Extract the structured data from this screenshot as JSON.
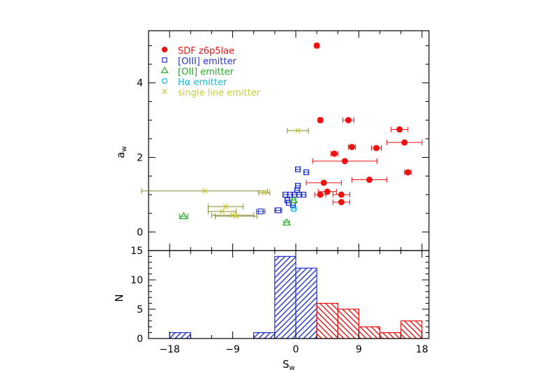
{
  "chart_data": [
    {
      "type": "scatter",
      "title": "",
      "xlabel": "S",
      "xlabel_sub": "w",
      "ylabel": "a",
      "ylabel_sub": "w",
      "xlim": [
        -21,
        19
      ],
      "ylim": [
        -0.5,
        5.4
      ],
      "yticks": [
        0,
        2,
        4
      ],
      "ytick_labels": [
        "0",
        "2",
        "4"
      ],
      "grid": false,
      "legend_position": "top-left",
      "series": [
        {
          "name": "SDF z6p5lae",
          "color": "#ee1111",
          "marker": "filled-circle",
          "points": [
            {
              "x": 3.0,
              "y": 5.0,
              "xerr": 0.3
            },
            {
              "x": 3.5,
              "y": 3.0,
              "xerr": 0.3
            },
            {
              "x": 7.5,
              "y": 3.0,
              "xerr": 0.8
            },
            {
              "x": 14.8,
              "y": 2.75,
              "xerr": 1.2
            },
            {
              "x": 15.5,
              "y": 2.4,
              "xerr": 2.5
            },
            {
              "x": 8.0,
              "y": 2.28,
              "xerr": 0.5
            },
            {
              "x": 11.5,
              "y": 2.25,
              "xerr": 0.7
            },
            {
              "x": 5.5,
              "y": 2.1,
              "xerr": 0.5
            },
            {
              "x": 7.0,
              "y": 1.9,
              "xerr": 4.6
            },
            {
              "x": 16.0,
              "y": 1.6,
              "xerr": 0.5
            },
            {
              "x": 10.5,
              "y": 1.4,
              "xerr": 2.5
            },
            {
              "x": 4.0,
              "y": 1.32,
              "xerr": 2.5
            },
            {
              "x": 4.5,
              "y": 1.08,
              "xerr": 1.3
            },
            {
              "x": 3.5,
              "y": 1.0,
              "xerr": 0.8
            },
            {
              "x": 6.5,
              "y": 1.0,
              "xerr": 1.2
            },
            {
              "x": 6.5,
              "y": 0.8,
              "xerr": 1.2
            }
          ]
        },
        {
          "name": "[OIII] emitter",
          "color": "#2233cc",
          "marker": "open-square",
          "points": [
            {
              "x": 0.3,
              "y": 1.68,
              "xerr": 0.3
            },
            {
              "x": 1.5,
              "y": 1.6,
              "xerr": 0.3
            },
            {
              "x": 0.3,
              "y": 1.24,
              "xerr": 0.3
            },
            {
              "x": 0.2,
              "y": 1.12,
              "xerr": 0.3
            },
            {
              "x": -1.5,
              "y": 1.0,
              "xerr": 0.3
            },
            {
              "x": -0.8,
              "y": 1.0,
              "xerr": 0.3
            },
            {
              "x": -0.2,
              "y": 1.0,
              "xerr": 0.3
            },
            {
              "x": 0.5,
              "y": 1.0,
              "xerr": 0.3
            },
            {
              "x": 1.1,
              "y": 1.0,
              "xerr": 0.3
            },
            {
              "x": -1.2,
              "y": 0.85,
              "xerr": 0.3
            },
            {
              "x": -1.0,
              "y": 0.78,
              "xerr": 0.3
            },
            {
              "x": -0.4,
              "y": 0.72,
              "xerr": 0.3
            },
            {
              "x": -2.5,
              "y": 0.58,
              "xerr": 0.5
            },
            {
              "x": -5.0,
              "y": 0.55,
              "xerr": 0.6
            }
          ]
        },
        {
          "name": "[OII] emitter",
          "color": "#22aa22",
          "marker": "open-triangle",
          "points": [
            {
              "x": -16.0,
              "y": 0.42,
              "xerr": 0.6
            },
            {
              "x": -1.3,
              "y": 0.25,
              "xerr": 0.4
            },
            {
              "x": -0.3,
              "y": 0.85,
              "xerr": 0.3
            }
          ]
        },
        {
          "name": "Hα emitter",
          "color": "#11bbdd",
          "marker": "open-hexagon",
          "points": [
            {
              "x": -0.3,
              "y": 0.62,
              "xerr": 0.3
            }
          ]
        },
        {
          "name": "single line emitter",
          "color": "#cccc33",
          "marker": "cross",
          "errcolor": "#888833",
          "points": [
            {
              "x": 0.3,
              "y": 2.72,
              "xerr": 1.5
            },
            {
              "x": -13.0,
              "y": 1.1,
              "xerr": 9.0
            },
            {
              "x": -4.5,
              "y": 1.05,
              "xerr": 0.8
            },
            {
              "x": -10.0,
              "y": 0.68,
              "xerr": 2.5
            },
            {
              "x": -10.5,
              "y": 0.55,
              "xerr": 2.0
            },
            {
              "x": -9.0,
              "y": 0.45,
              "xerr": 3.0
            },
            {
              "x": -8.5,
              "y": 0.42,
              "xerr": 3.0
            }
          ]
        }
      ]
    },
    {
      "type": "bar",
      "subtype": "histogram",
      "title": "",
      "xlabel": "S",
      "xlabel_sub": "w",
      "ylabel": "N",
      "xlim": [
        -21,
        19
      ],
      "ylim": [
        0,
        15
      ],
      "xticks": [
        -18,
        -9,
        0,
        9,
        18
      ],
      "xtick_labels": [
        "−18",
        "−9",
        "0",
        "9",
        "18"
      ],
      "yticks": [
        0,
        5,
        10,
        15
      ],
      "ytick_labels": [
        "0",
        "5",
        "10",
        "15"
      ],
      "bin_width": 3,
      "series": [
        {
          "color": "#2233cc",
          "hatch": "forward-diagonal",
          "bins": [
            {
              "x0": -18,
              "x1": -15,
              "count": 1
            },
            {
              "x0": -15,
              "x1": -12,
              "count": 0
            },
            {
              "x0": -12,
              "x1": -9,
              "count": 0
            },
            {
              "x0": -9,
              "x1": -6,
              "count": 0
            },
            {
              "x0": -6,
              "x1": -3,
              "count": 1
            },
            {
              "x0": -3,
              "x1": 0,
              "count": 14
            },
            {
              "x0": 0,
              "x1": 3,
              "count": 12
            }
          ]
        },
        {
          "color": "#ee1111",
          "hatch": "back-diagonal",
          "bins": [
            {
              "x0": 3,
              "x1": 6,
              "count": 6
            },
            {
              "x0": 6,
              "x1": 9,
              "count": 5
            },
            {
              "x0": 9,
              "x1": 12,
              "count": 2
            },
            {
              "x0": 12,
              "x1": 15,
              "count": 1
            },
            {
              "x0": 15,
              "x1": 18,
              "count": 3
            }
          ]
        }
      ]
    }
  ]
}
